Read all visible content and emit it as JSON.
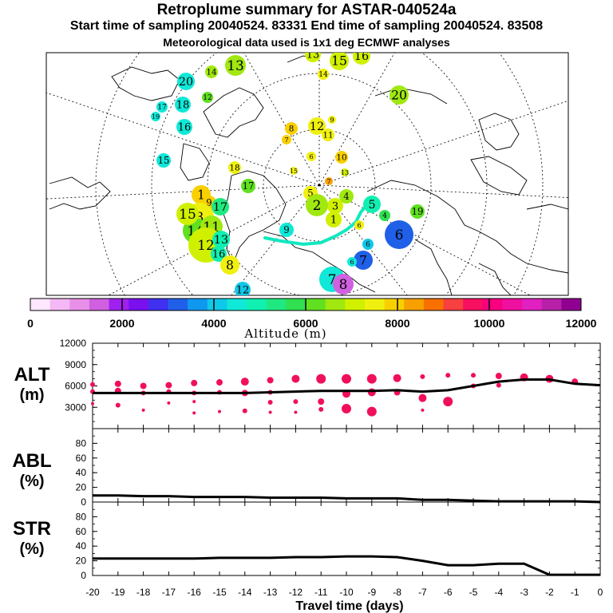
{
  "titles": {
    "line1": "Retroplume summary for ASTAR-040524a",
    "line2": "Start time of sampling 20040524. 83331     End time of sampling 20040524. 83508",
    "line3": "Meteorological data used is 1x1 deg ECMWF analyses"
  },
  "colorbar": {
    "label": "Altitude (m)",
    "ticks": [
      "0",
      "2000",
      "4000",
      "6000",
      "8000",
      "10000",
      "12000"
    ],
    "colors": [
      "#ffe8ff",
      "#f4b8f4",
      "#e890e8",
      "#d060e0",
      "#a020f0",
      "#7a10f0",
      "#4030f0",
      "#2060e8",
      "#1098f0",
      "#10c8e8",
      "#10e8d8",
      "#10f0b0",
      "#20e880",
      "#30e050",
      "#60e020",
      "#a0e810",
      "#d0f000",
      "#f0f010",
      "#f8d000",
      "#f8a000",
      "#f87000",
      "#f84040",
      "#f81060",
      "#f80080",
      "#f010a0",
      "#e020c0",
      "#b820a8",
      "#900090"
    ]
  },
  "map": {
    "clusters": [
      {
        "n": "20",
        "a": 4600
      },
      {
        "n": "17",
        "a": 4300
      },
      {
        "n": "19",
        "a": 4400
      },
      {
        "n": "18",
        "a": 4500
      },
      {
        "n": "16",
        "a": 4700
      },
      {
        "n": "14",
        "a": 6800
      },
      {
        "n": "13",
        "a": 6500
      },
      {
        "n": "12",
        "a": 6400
      },
      {
        "n": "15",
        "a": 4600
      },
      {
        "n": "18",
        "a": 7400
      },
      {
        "n": "13",
        "a": 6900
      },
      {
        "n": "14",
        "a": 7300
      },
      {
        "n": "15",
        "a": 7000
      },
      {
        "n": "16",
        "a": 7200
      },
      {
        "n": "20",
        "a": 6800
      },
      {
        "n": "8",
        "a": 7800
      },
      {
        "n": "12",
        "a": 7600
      },
      {
        "n": "11",
        "a": 7700
      },
      {
        "n": "9",
        "a": 7600
      },
      {
        "n": "10",
        "a": 7800
      },
      {
        "n": "7",
        "a": 7800
      },
      {
        "n": "6",
        "a": 7500
      },
      {
        "n": "13",
        "a": 7200
      },
      {
        "n": "7",
        "a": 8400
      },
      {
        "n": "17",
        "a": 6000
      },
      {
        "n": "15",
        "a": 7400
      },
      {
        "n": "5",
        "a": 7700
      },
      {
        "n": "4",
        "a": 6500
      },
      {
        "n": "3",
        "a": 6900
      },
      {
        "n": "2",
        "a": 6600
      },
      {
        "n": "1",
        "a": 6900
      },
      {
        "n": "6",
        "a": 7500
      },
      {
        "n": "5",
        "a": 5000
      },
      {
        "n": "6",
        "a": 3000
      },
      {
        "n": "4",
        "a": 5900
      },
      {
        "n": "19",
        "a": 6200
      },
      {
        "n": "6",
        "a": 4000
      },
      {
        "n": "7",
        "a": 3400
      },
      {
        "n": "6",
        "a": 4300
      },
      {
        "n": "7",
        "a": 4600
      },
      {
        "n": "8",
        "a": 1700
      },
      {
        "n": "1",
        "a": 7800
      },
      {
        "n": "9",
        "a": 7800
      },
      {
        "n": "3",
        "a": 7700
      },
      {
        "n": "17",
        "a": 5300
      },
      {
        "n": "14",
        "a": 6400
      },
      {
        "n": "15",
        "a": 7200
      },
      {
        "n": "11",
        "a": 6800
      },
      {
        "n": "12",
        "a": 7000
      },
      {
        "n": "13",
        "a": 4800
      },
      {
        "n": "16",
        "a": 4800
      },
      {
        "n": "8",
        "a": 7400
      },
      {
        "n": "9",
        "a": 4400
      },
      {
        "n": "12",
        "a": 4000
      }
    ]
  },
  "panels": {
    "alt_label": "ALT",
    "alt_unit": "(m)",
    "abl_label": "ABL",
    "abl_unit": "(%)",
    "str_label": "STR",
    "str_unit": "(%)",
    "xlabel": "Travel time (days)"
  },
  "chart_data": [
    {
      "type": "line",
      "title": "ALT",
      "ylabel": "(m)",
      "xlabel": "Travel time (days)",
      "xlim": [
        -20,
        0
      ],
      "ylim": [
        0,
        12000
      ],
      "yticks": [
        "3000",
        "6000",
        "9000",
        "12000"
      ],
      "x": [
        -20,
        -19,
        -18,
        -17,
        -16,
        -15,
        -14,
        -13,
        -12,
        -11,
        -10,
        -9,
        -8,
        -7,
        -6,
        -5,
        -4,
        -3,
        -2,
        -1,
        0
      ],
      "series": [
        {
          "name": "mean altitude",
          "values": [
            5000,
            5000,
            5000,
            5000,
            5000,
            5000,
            5000,
            5100,
            5200,
            5300,
            5300,
            5300,
            5400,
            5200,
            5400,
            6000,
            6600,
            6900,
            6900,
            6300,
            6100
          ]
        }
      ],
      "scatter": {
        "x": [
          -20,
          -20,
          -20,
          -19,
          -19,
          -19,
          -18,
          -18,
          -18,
          -17,
          -17,
          -17,
          -16,
          -16,
          -16,
          -16,
          -15,
          -15,
          -15,
          -14,
          -14,
          -14,
          -13,
          -13,
          -13,
          -13,
          -12,
          -12,
          -12,
          -11,
          -11,
          -11,
          -10,
          -10,
          -10,
          -9,
          -9,
          -9,
          -8,
          -8,
          -7,
          -7,
          -7,
          -6,
          -6,
          -5,
          -5,
          -4,
          -4,
          -3,
          -2,
          -1
        ],
        "y": [
          6200,
          5200,
          3500,
          6300,
          5300,
          3300,
          6000,
          5000,
          2600,
          6100,
          5200,
          3600,
          6400,
          5000,
          3800,
          2200,
          6500,
          5100,
          2400,
          6600,
          5000,
          2500,
          6800,
          5100,
          3700,
          2300,
          7000,
          3800,
          2300,
          7000,
          3800,
          2700,
          7000,
          4900,
          2800,
          7000,
          5100,
          2400,
          7100,
          5100,
          7300,
          4300,
          2600,
          7500,
          3800,
          7500,
          6000,
          7400,
          6100,
          7200,
          7000,
          6600
        ],
        "size": [
          3,
          3,
          2,
          4,
          4,
          3,
          4,
          3,
          2,
          4,
          3,
          2,
          4,
          3,
          2,
          2,
          4,
          3,
          2,
          5,
          4,
          3,
          4,
          3,
          3,
          2,
          5,
          3,
          2,
          6,
          4,
          3,
          6,
          5,
          6,
          6,
          5,
          6,
          5,
          4,
          3,
          5,
          2,
          3,
          6,
          3,
          3,
          4,
          3,
          5,
          5,
          4
        ]
      }
    },
    {
      "type": "line",
      "title": "ABL",
      "ylabel": "(%)",
      "xlim": [
        -20,
        0
      ],
      "ylim": [
        0,
        100
      ],
      "yticks": [
        "0",
        "20",
        "40",
        "60",
        "80"
      ],
      "x": [
        -20,
        -19,
        -18,
        -17,
        -16,
        -15,
        -14,
        -13,
        -12,
        -11,
        -10,
        -9,
        -8,
        -7,
        -6,
        -5,
        -4,
        -3,
        -2,
        -1,
        0
      ],
      "series": [
        {
          "name": "ABL fraction",
          "values": [
            9,
            9,
            8,
            8,
            7,
            7,
            7,
            6,
            6,
            6,
            5,
            5,
            5,
            3,
            3,
            2,
            1,
            1,
            1,
            1,
            0
          ]
        }
      ]
    },
    {
      "type": "line",
      "title": "STR",
      "ylabel": "(%)",
      "xlabel": "Travel time (days)",
      "xlim": [
        -20,
        0
      ],
      "ylim": [
        0,
        100
      ],
      "yticks": [
        "0",
        "20",
        "40",
        "60",
        "80"
      ],
      "xticks": [
        "-20",
        "-19",
        "-18",
        "-17",
        "-16",
        "-15",
        "-14",
        "-13",
        "-12",
        "-11",
        "-10",
        "-9",
        "-8",
        "-7",
        "-6",
        "-5",
        "-4",
        "-3",
        "-2",
        "-1",
        "0"
      ],
      "x": [
        -20,
        -19,
        -18,
        -17,
        -16,
        -15,
        -14,
        -13,
        -12,
        -11,
        -10,
        -9,
        -8,
        -7,
        -6,
        -5,
        -4,
        -3,
        -2,
        -1,
        0
      ],
      "series": [
        {
          "name": "stratospheric fraction",
          "values": [
            23,
            23,
            23,
            23,
            23,
            24,
            24,
            24,
            25,
            25,
            26,
            26,
            25,
            20,
            14,
            14,
            16,
            16,
            1,
            1,
            1
          ]
        }
      ]
    }
  ]
}
